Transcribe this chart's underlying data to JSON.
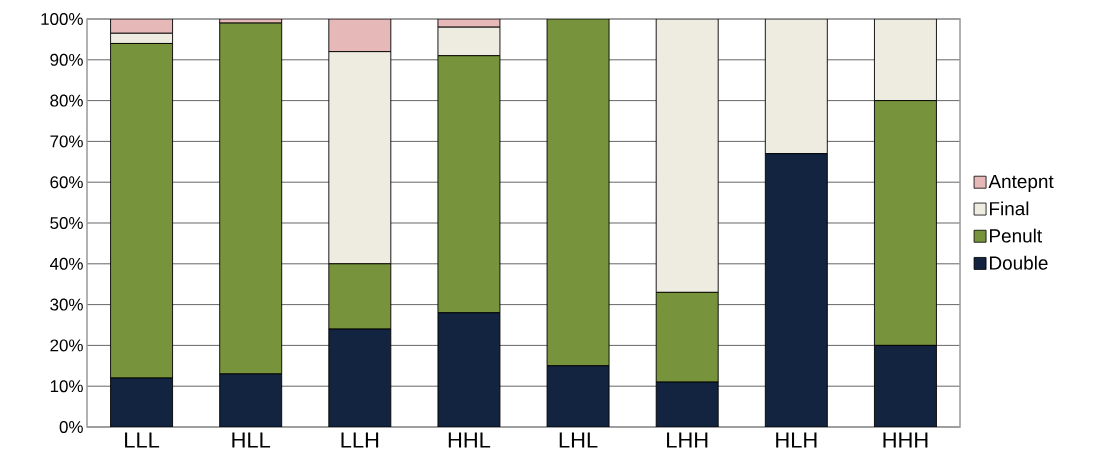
{
  "chart_data": {
    "type": "bar",
    "stacked": true,
    "categories": [
      "LLL",
      "HLL",
      "LLH",
      "HHL",
      "LHL",
      "LHH",
      "HLH",
      "HHH"
    ],
    "series": [
      {
        "name": "Double",
        "color": "#12243f",
        "values": [
          12,
          13,
          24,
          28,
          15,
          11,
          67,
          20
        ]
      },
      {
        "name": "Penult",
        "color": "#77933c",
        "values": [
          82,
          86,
          16,
          63,
          85,
          22,
          0,
          60
        ]
      },
      {
        "name": "Final",
        "color": "#eeece1",
        "values": [
          2.5,
          0,
          52,
          7,
          0,
          67,
          33,
          20
        ]
      },
      {
        "name": "Antepnt",
        "color": "#e6b9b8",
        "values": [
          3.5,
          1,
          8,
          2,
          0,
          0,
          0,
          0
        ]
      }
    ],
    "ylim": [
      0,
      100
    ],
    "yticks": [
      {
        "value": 0,
        "label": "0%"
      },
      {
        "value": 10,
        "label": "10%"
      },
      {
        "value": 20,
        "label": "20%"
      },
      {
        "value": 30,
        "label": "30%"
      },
      {
        "value": 40,
        "label": "40%"
      },
      {
        "value": 50,
        "label": "50%"
      },
      {
        "value": 60,
        "label": "60%"
      },
      {
        "value": 70,
        "label": "70%"
      },
      {
        "value": 80,
        "label": "80%"
      },
      {
        "value": 90,
        "label": "90%"
      },
      {
        "value": 100,
        "label": "100%"
      }
    ],
    "grid": "y",
    "legend": "right"
  }
}
